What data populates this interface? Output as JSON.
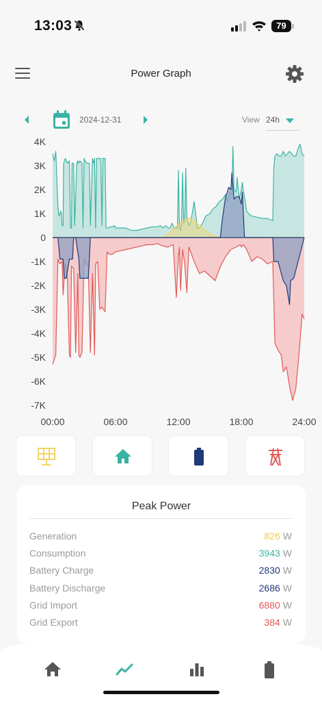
{
  "status_bar": {
    "time": "13:03",
    "battery": "79"
  },
  "header": {
    "title": "Power Graph"
  },
  "date_nav": {
    "date": "2024-12-31",
    "view_label": "View",
    "view_value": "24h"
  },
  "colors": {
    "teal": "#3bb3a3",
    "teal_fill": "#bfe3dd",
    "red": "#e05a57",
    "red_fill": "#f5c4c3",
    "navy": "#1f3a78",
    "navy_fill": "#8fa0c2",
    "yellow": "#f2d46a",
    "grey_bg": "#f7f7f7"
  },
  "chart_data": {
    "type": "area",
    "x_unit": "hours",
    "xlim": [
      0,
      24
    ],
    "ylim": [
      -7000,
      4000
    ],
    "ytick_labels": [
      "4K",
      "3K",
      "2K",
      "1K",
      "0",
      "-1K",
      "-2K",
      "-3K",
      "-4K",
      "-5K",
      "-6K",
      "-7K"
    ],
    "xtick_labels": [
      "00:00",
      "06:00",
      "12:00",
      "18:00",
      "24:00"
    ],
    "series": [
      {
        "color": "teal",
        "x": [
          0,
          0.15,
          0.3,
          0.5,
          0.6,
          0.8,
          0.9,
          1.0,
          1.05,
          1.2,
          1.4,
          1.6,
          1.7,
          1.8,
          1.85,
          2.0,
          2.1,
          2.3,
          2.4,
          2.45,
          2.6,
          2.8,
          2.9,
          3.0,
          3.1,
          3.3,
          3.5,
          3.6,
          3.8,
          3.9,
          4.0,
          4.1,
          4.2,
          4.4,
          4.5,
          4.6,
          4.7,
          4.8,
          4.9,
          5.0,
          5.1,
          5.3,
          5.5,
          5.7,
          5.9,
          6.0,
          6.5,
          7.0,
          7.5,
          8.0,
          8.5,
          9.0,
          9.5,
          10.0,
          10.3,
          10.5,
          10.8,
          11.0,
          11.2,
          11.4,
          11.6,
          11.8,
          11.9,
          12.0,
          12.1,
          12.2,
          12.3,
          12.4,
          12.5,
          12.6,
          12.7,
          12.8,
          13.0,
          13.2,
          13.5,
          13.8,
          14.0,
          14.3,
          14.6,
          15.0,
          15.3,
          15.6,
          15.9,
          16.2,
          16.5,
          16.7,
          16.9,
          17.1,
          17.2,
          17.3,
          17.5,
          17.6,
          17.8,
          18.0,
          18.1,
          18.2,
          18.3,
          18.5,
          18.8,
          19.0,
          19.5,
          20.0,
          20.5,
          21.0,
          21.1,
          21.2,
          21.4,
          21.6,
          21.8,
          22.0,
          22.2,
          22.4,
          22.6,
          22.8,
          23.0,
          23.2,
          23.4,
          23.6,
          23.8,
          24.0
        ],
        "y": [
          3500,
          3200,
          3600,
          1300,
          900,
          1100,
          500,
          500,
          3100,
          3300,
          3100,
          3200,
          400,
          400,
          3100,
          3100,
          500,
          3100,
          3200,
          3100,
          3200,
          3100,
          400,
          3300,
          3200,
          3100,
          3100,
          500,
          3300,
          3100,
          3300,
          400,
          3300,
          3300,
          3300,
          3300,
          500,
          3300,
          3300,
          3300,
          400,
          400,
          450,
          450,
          500,
          400,
          400,
          400,
          300,
          300,
          350,
          400,
          450,
          450,
          500,
          400,
          500,
          400,
          400,
          600,
          400,
          400,
          400,
          2800,
          400,
          300,
          700,
          2700,
          600,
          700,
          2900,
          800,
          500,
          700,
          1500,
          400,
          400,
          600,
          900,
          1000,
          1200,
          1300,
          1500,
          1600,
          1800,
          1500,
          1900,
          1800,
          3800,
          2000,
          1900,
          2500,
          1600,
          2000,
          2300,
          1900,
          1700,
          1100,
          950,
          900,
          850,
          800,
          800,
          700,
          2900,
          3400,
          3500,
          3400,
          3400,
          3600,
          3400,
          3500,
          3600,
          3500,
          3400,
          3400,
          3700,
          3900,
          3500,
          3400
        ]
      },
      {
        "color": "red",
        "x": [
          0,
          0.15,
          0.3,
          0.5,
          0.7,
          0.9,
          1.0,
          1.2,
          1.4,
          1.6,
          1.7,
          1.8,
          2.0,
          2.2,
          2.4,
          2.5,
          2.6,
          2.8,
          3.0,
          3.2,
          3.4,
          3.6,
          3.8,
          4.0,
          4.1,
          4.3,
          4.5,
          4.7,
          5.0,
          5.2,
          5.4,
          5.7,
          6.0,
          6.5,
          7.0,
          7.5,
          8.0,
          8.5,
          9.0,
          9.5,
          10.0,
          10.5,
          11.0,
          11.5,
          11.8,
          12.0,
          12.1,
          12.2,
          12.4,
          12.6,
          12.8,
          13.0,
          13.5,
          14.0,
          14.5,
          15.0,
          15.5,
          16.0,
          16.5,
          17.0,
          17.5,
          17.9,
          18.0,
          18.2,
          18.5,
          19.0,
          19.5,
          20.0,
          20.5,
          21.0,
          21.2,
          21.5,
          21.8,
          22.0,
          22.3,
          22.6,
          22.9,
          23.2,
          23.5,
          23.8,
          24.0
        ],
        "y": [
          -5300,
          -5100,
          -4900,
          -900,
          -1100,
          -1000,
          -2400,
          -1100,
          -1700,
          -4900,
          -5000,
          -1200,
          -1300,
          -4800,
          -1500,
          -4900,
          -5000,
          -4800,
          -900,
          -1100,
          -1200,
          -4800,
          -1500,
          -4900,
          -1100,
          -1000,
          -3000,
          -2900,
          -3100,
          -600,
          -700,
          -700,
          -600,
          -550,
          -500,
          -450,
          -400,
          -350,
          -300,
          -300,
          -250,
          -350,
          -400,
          -300,
          -2500,
          -800,
          -400,
          -2200,
          -500,
          -1100,
          -2300,
          -400,
          -1000,
          -1500,
          -1400,
          -1600,
          -1800,
          -1200,
          -800,
          -500,
          -400,
          -300,
          -400,
          -300,
          -500,
          -1000,
          -800,
          -900,
          -1100,
          -1000,
          -4400,
          -4700,
          -4900,
          -5600,
          -5400,
          -6200,
          -6800,
          -6300,
          -4900,
          -3200,
          -3400
        ]
      },
      {
        "color": "navy",
        "x": [
          0,
          0.5,
          0.7,
          1.0,
          1.1,
          1.3,
          1.6,
          1.9,
          2.0,
          2.2,
          2.5,
          2.6,
          3.0,
          3.4,
          3.5,
          3.6,
          4.0,
          4.3,
          4.5,
          5.0,
          6.0,
          16.0,
          16.2,
          16.5,
          16.8,
          17.0,
          17.1,
          17.3,
          17.5,
          17.8,
          18.0,
          18.1,
          18.3,
          20.0,
          21.0,
          21.1,
          21.5,
          22.0,
          22.3,
          22.6,
          22.7,
          23.0,
          24.0
        ],
        "y": [
          0,
          0,
          -900,
          -900,
          -1700,
          -1700,
          -900,
          -900,
          0,
          0,
          -900,
          -1700,
          -1700,
          -1700,
          -900,
          0,
          0,
          0,
          0,
          0,
          0,
          0,
          800,
          1700,
          2100,
          2000,
          2700,
          1600,
          1700,
          1700,
          1400,
          1900,
          0,
          0,
          0,
          -1000,
          -1000,
          -1800,
          -2000,
          -2800,
          -1800,
          -1700,
          0
        ]
      },
      {
        "color": "yellow",
        "x": [
          0,
          10.5,
          11.0,
          11.5,
          12.0,
          12.5,
          13.0,
          13.5,
          14.0,
          14.5,
          15.0,
          15.5,
          16.0,
          24.0
        ],
        "y": [
          0,
          0,
          150,
          350,
          550,
          700,
          820,
          700,
          500,
          300,
          150,
          50,
          0,
          0
        ]
      }
    ]
  },
  "cards": [
    {
      "name": "generation",
      "icon": "solar-panel-icon",
      "color": "yellow"
    },
    {
      "name": "consumption",
      "icon": "home-icon",
      "color": "teal"
    },
    {
      "name": "battery",
      "icon": "battery-icon",
      "color": "navy"
    },
    {
      "name": "grid",
      "icon": "power-tower-icon",
      "color": "red"
    }
  ],
  "peak_power": {
    "title": "Peak Power",
    "unit": "W",
    "rows": [
      {
        "label": "Generation",
        "value": "826",
        "color": "#f2c94c"
      },
      {
        "label": "Consumption",
        "value": "3943",
        "color": "#3bb3a3"
      },
      {
        "label": "Battery Charge",
        "value": "2830",
        "color": "#1f3a78"
      },
      {
        "label": "Battery Discharge",
        "value": "2686",
        "color": "#1f3a78"
      },
      {
        "label": "Grid Import",
        "value": "6880",
        "color": "#e05a57"
      },
      {
        "label": "Grid Export",
        "value": "384",
        "color": "#e05a57"
      }
    ]
  },
  "tab_bar": [
    {
      "icon": "home-icon"
    },
    {
      "icon": "graph-icon",
      "active": true
    },
    {
      "icon": "bar-chart-icon"
    },
    {
      "icon": "battery-icon"
    }
  ]
}
